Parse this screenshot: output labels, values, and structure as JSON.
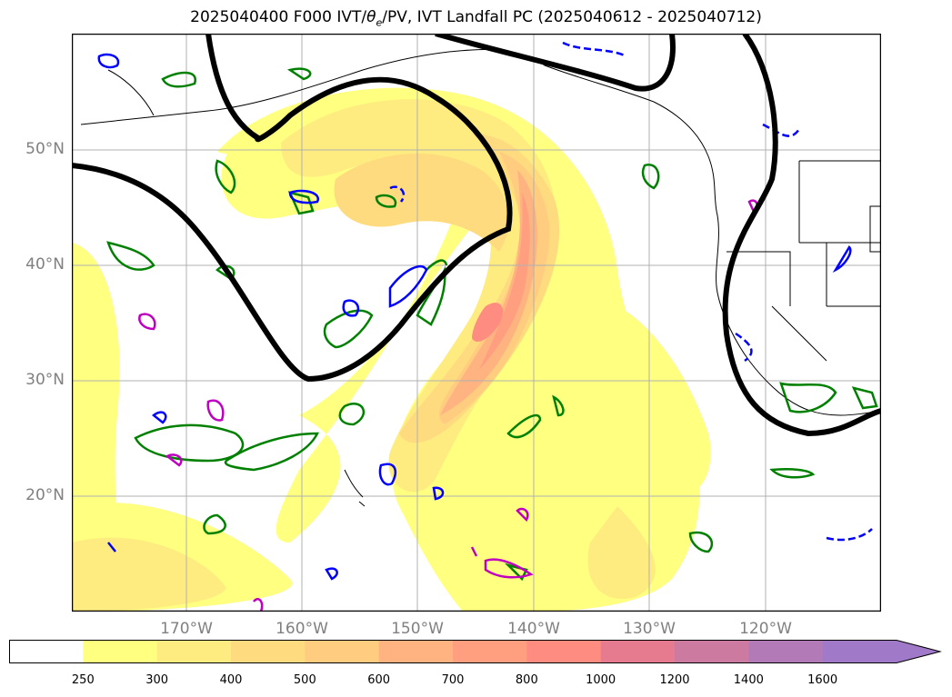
{
  "title": {
    "prefix": "2025040400 F000 IVT/",
    "theta": "θ",
    "theta_sub": "e",
    "suffix": "/PV, IVT Landfall PC (2025040612 - 2025040712)"
  },
  "lat_labels": [
    "50°N",
    "40°N",
    "30°N",
    "20°N"
  ],
  "lon_labels": [
    "170°W",
    "160°W",
    "150°W",
    "140°W",
    "130°W",
    "120°W"
  ],
  "colorbar": {
    "ticks": [
      "250",
      "300",
      "400",
      "500",
      "600",
      "700",
      "800",
      "1000",
      "1200",
      "1400",
      "1600"
    ],
    "colors": [
      "#ffffff",
      "#ffff80",
      "#ffec80",
      "#ffdb80",
      "#ffcc80",
      "#ffb380",
      "#ff9f80",
      "#ff8c80",
      "#e67a8f",
      "#cc7aa0",
      "#b37ab8",
      "#a07ac8"
    ]
  }
}
